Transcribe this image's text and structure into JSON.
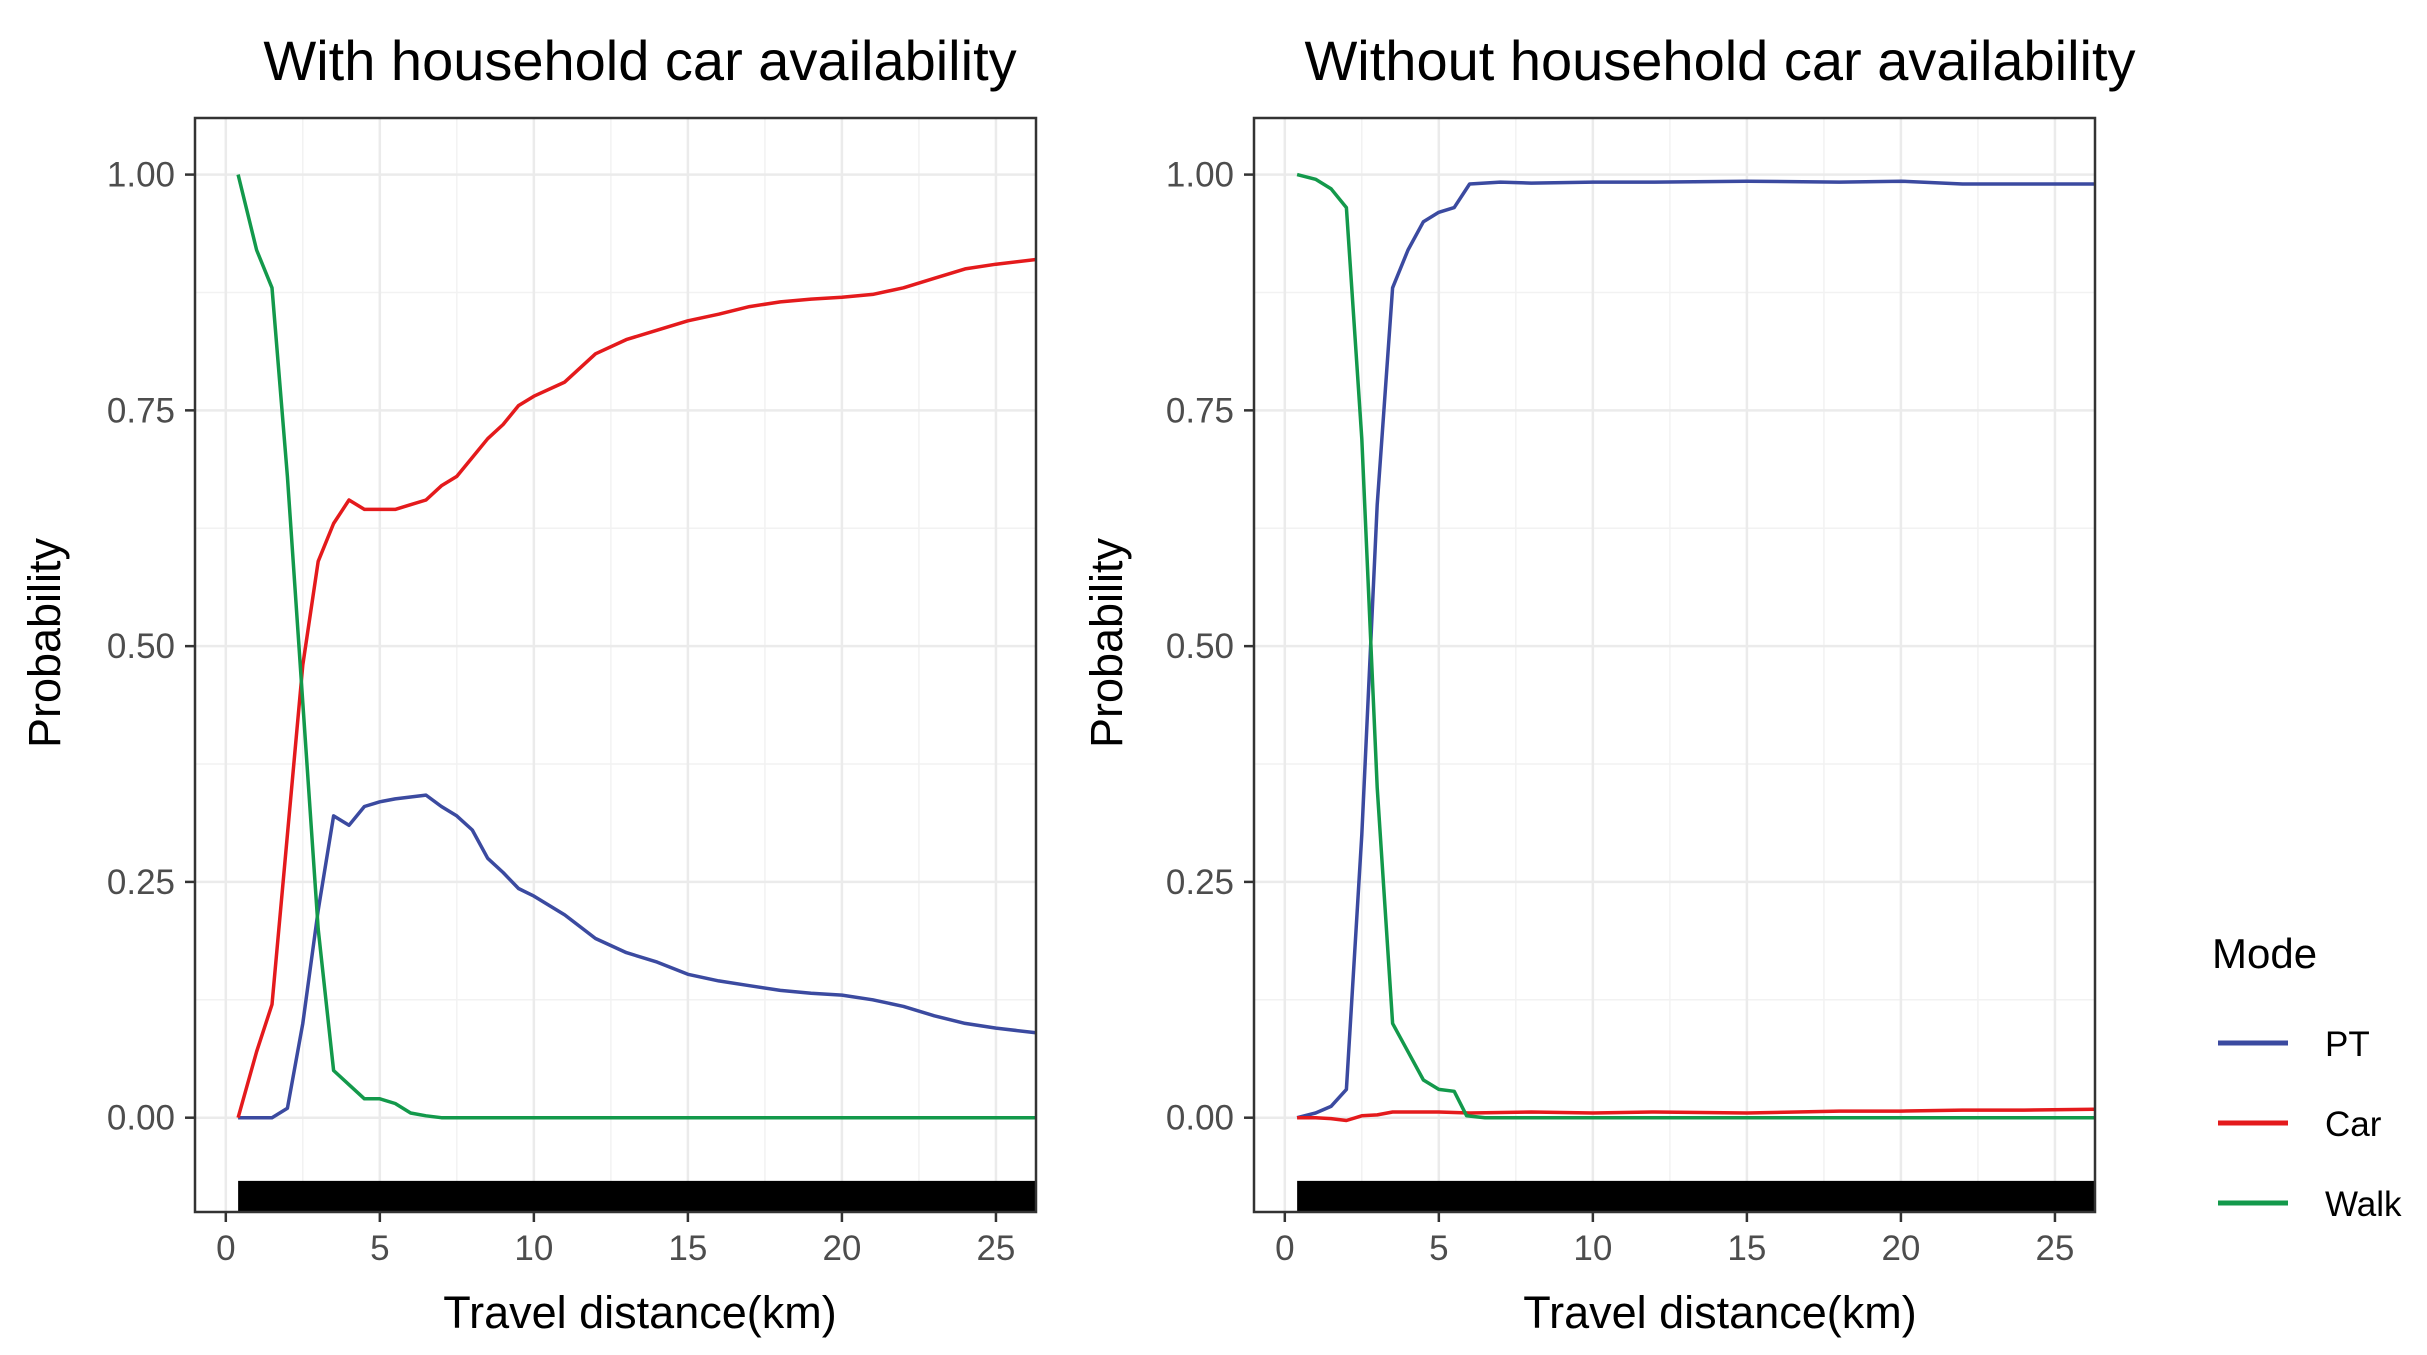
{
  "chart_data": [
    {
      "type": "line",
      "title": "With household car availability",
      "xlabel": "Travel distance(km)",
      "ylabel": "Probability",
      "xlim": [
        -1,
        26.3
      ],
      "ylim": [
        -0.1,
        1.06
      ],
      "x_ticks": [
        0,
        5,
        10,
        15,
        20,
        25
      ],
      "x_tick_labels": [
        "0",
        "5",
        "10",
        "15",
        "20",
        "25"
      ],
      "y_ticks": [
        0,
        0.25,
        0.5,
        0.75,
        1.0
      ],
      "y_tick_labels": [
        "0.00",
        "0.25",
        "0.50",
        "0.75",
        "1.00"
      ],
      "grid": true,
      "rug": {
        "from": 0.4,
        "to": 26.3,
        "y_from": -0.1,
        "y_to": -0.067
      },
      "series": [
        {
          "name": "PT",
          "color": "#3b4aa0",
          "x": [
            0.4,
            0.8,
            1.5,
            2,
            2.5,
            3,
            3.5,
            4,
            4.5,
            5,
            5.5,
            6,
            6.5,
            7,
            7.5,
            8,
            8.5,
            9,
            9.5,
            10,
            11,
            12,
            13,
            14,
            15,
            16,
            17,
            18,
            19,
            20,
            21,
            22,
            23,
            24,
            25,
            26.3
          ],
          "y": [
            0.0,
            0.0,
            0.0,
            0.01,
            0.1,
            0.22,
            0.32,
            0.31,
            0.33,
            0.335,
            0.338,
            0.34,
            0.342,
            0.33,
            0.32,
            0.305,
            0.275,
            0.26,
            0.243,
            0.235,
            0.215,
            0.19,
            0.175,
            0.165,
            0.152,
            0.145,
            0.14,
            0.135,
            0.132,
            0.13,
            0.125,
            0.118,
            0.108,
            0.1,
            0.095,
            0.09
          ]
        },
        {
          "name": "Car",
          "color": "#e41a1c",
          "x": [
            0.4,
            1,
            1.5,
            2,
            2.5,
            3,
            3.5,
            4,
            4.5,
            5,
            5.5,
            6,
            6.5,
            7,
            7.5,
            8,
            8.5,
            9,
            9.5,
            10,
            11,
            12,
            13,
            14,
            15,
            16,
            17,
            18,
            19,
            20,
            21,
            22,
            23,
            24,
            25,
            26.3
          ],
          "y": [
            0.0,
            0.07,
            0.12,
            0.3,
            0.48,
            0.59,
            0.63,
            0.655,
            0.645,
            0.645,
            0.645,
            0.65,
            0.655,
            0.67,
            0.68,
            0.7,
            0.72,
            0.735,
            0.755,
            0.765,
            0.78,
            0.81,
            0.825,
            0.835,
            0.845,
            0.852,
            0.86,
            0.865,
            0.868,
            0.87,
            0.873,
            0.88,
            0.89,
            0.9,
            0.905,
            0.91
          ]
        },
        {
          "name": "Walk",
          "color": "#13994b",
          "x": [
            0.4,
            1,
            1.5,
            2,
            2.5,
            3,
            3.5,
            4,
            4.5,
            5,
            5.5,
            6,
            6.5,
            7,
            8,
            9,
            10,
            12,
            15,
            20,
            26.3
          ],
          "y": [
            1.0,
            0.92,
            0.88,
            0.68,
            0.44,
            0.2,
            0.05,
            0.035,
            0.02,
            0.02,
            0.015,
            0.005,
            0.002,
            0.0,
            0.0,
            0.0,
            0.0,
            0.0,
            0.0,
            0.0,
            0.0
          ]
        }
      ]
    },
    {
      "type": "line",
      "title": "Without household car availability",
      "xlabel": "Travel distance(km)",
      "ylabel": "Probability",
      "xlim": [
        -1,
        26.3
      ],
      "ylim": [
        -0.1,
        1.06
      ],
      "x_ticks": [
        0,
        5,
        10,
        15,
        20,
        25
      ],
      "x_tick_labels": [
        "0",
        "5",
        "10",
        "15",
        "20",
        "25"
      ],
      "y_ticks": [
        0,
        0.25,
        0.5,
        0.75,
        1.0
      ],
      "y_tick_labels": [
        "0.00",
        "0.25",
        "0.50",
        "0.75",
        "1.00"
      ],
      "grid": true,
      "rug": {
        "from": 0.4,
        "to": 26.3,
        "y_from": -0.1,
        "y_to": -0.067
      },
      "series": [
        {
          "name": "PT",
          "color": "#3b4aa0",
          "x": [
            0.4,
            1,
            1.5,
            2,
            2.5,
            3,
            3.5,
            4,
            4.5,
            5,
            5.5,
            6,
            7,
            8,
            10,
            12,
            15,
            18,
            20,
            22,
            24,
            26.3
          ],
          "y": [
            0.0,
            0.005,
            0.012,
            0.03,
            0.3,
            0.65,
            0.88,
            0.92,
            0.95,
            0.96,
            0.965,
            0.99,
            0.992,
            0.991,
            0.992,
            0.992,
            0.993,
            0.992,
            0.993,
            0.99,
            0.99,
            0.99
          ]
        },
        {
          "name": "Car",
          "color": "#e41a1c",
          "x": [
            0.4,
            1,
            1.5,
            2,
            2.5,
            3,
            3.5,
            4,
            5,
            6,
            8,
            10,
            12,
            15,
            18,
            20,
            22,
            24,
            26.3
          ],
          "y": [
            0.0,
            0.0,
            -0.001,
            -0.003,
            0.002,
            0.003,
            0.006,
            0.006,
            0.006,
            0.005,
            0.006,
            0.005,
            0.006,
            0.005,
            0.007,
            0.007,
            0.008,
            0.008,
            0.009
          ]
        },
        {
          "name": "Walk",
          "color": "#13994b",
          "x": [
            0.4,
            1,
            1.5,
            2,
            2.5,
            3,
            3.5,
            4,
            4.5,
            5,
            5.5,
            5.9,
            6.5,
            8,
            10,
            15,
            20,
            26.3
          ],
          "y": [
            1.0,
            0.995,
            0.985,
            0.965,
            0.72,
            0.35,
            0.1,
            0.07,
            0.04,
            0.03,
            0.028,
            0.002,
            0.0,
            0.0,
            0.0,
            0.0,
            0.0,
            0.0
          ]
        }
      ]
    }
  ],
  "legend": {
    "title": "Mode",
    "items": [
      {
        "label": "PT",
        "color": "#3b4aa0"
      },
      {
        "label": "Car",
        "color": "#e41a1c"
      },
      {
        "label": "Walk",
        "color": "#13994b"
      }
    ]
  }
}
